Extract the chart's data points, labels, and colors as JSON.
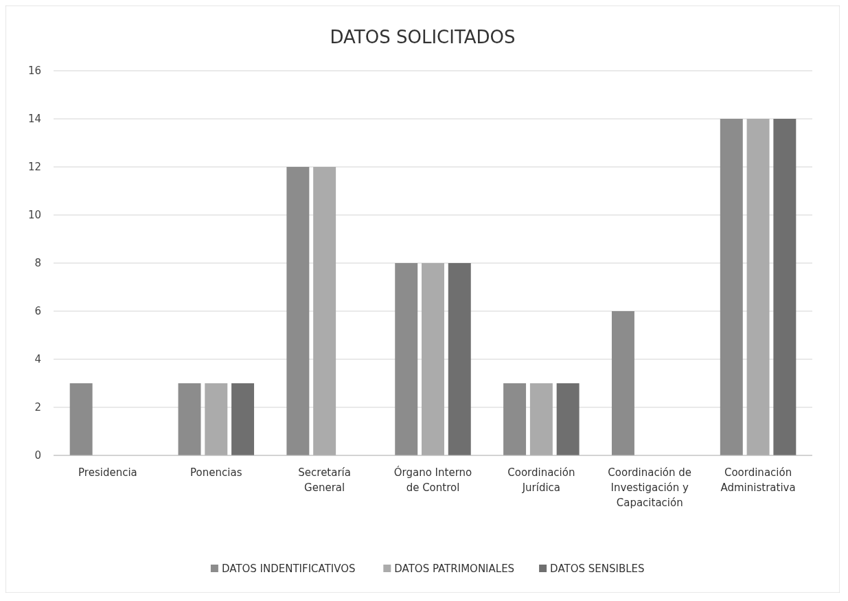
{
  "chart_data": {
    "type": "bar",
    "title": "DATOS SOLICITADOS",
    "categories": [
      "Presidencia",
      "Ponencias",
      "Secretaría General",
      "Órgano Interno de Control",
      "Coordinación Jurídica",
      "Coordinación de Investigación y Capacitación",
      "Coordinación Administrativa"
    ],
    "series": [
      {
        "name": "DATOS INDENTIFICATIVOS",
        "color": "#8c8c8c",
        "values": [
          3,
          3,
          12,
          8,
          3,
          6,
          14
        ]
      },
      {
        "name": "DATOS PATRIMONIALES",
        "color": "#ababab",
        "values": [
          0,
          3,
          12,
          8,
          3,
          0,
          14
        ]
      },
      {
        "name": "DATOS SENSIBLES",
        "color": "#6f6f6f",
        "values": [
          0,
          3,
          0,
          8,
          3,
          0,
          14
        ]
      }
    ],
    "ylim": [
      0,
      16
    ],
    "yticks": [
      0,
      2,
      4,
      6,
      8,
      10,
      12,
      14,
      16
    ],
    "grid": "y",
    "legend": "bottom"
  }
}
